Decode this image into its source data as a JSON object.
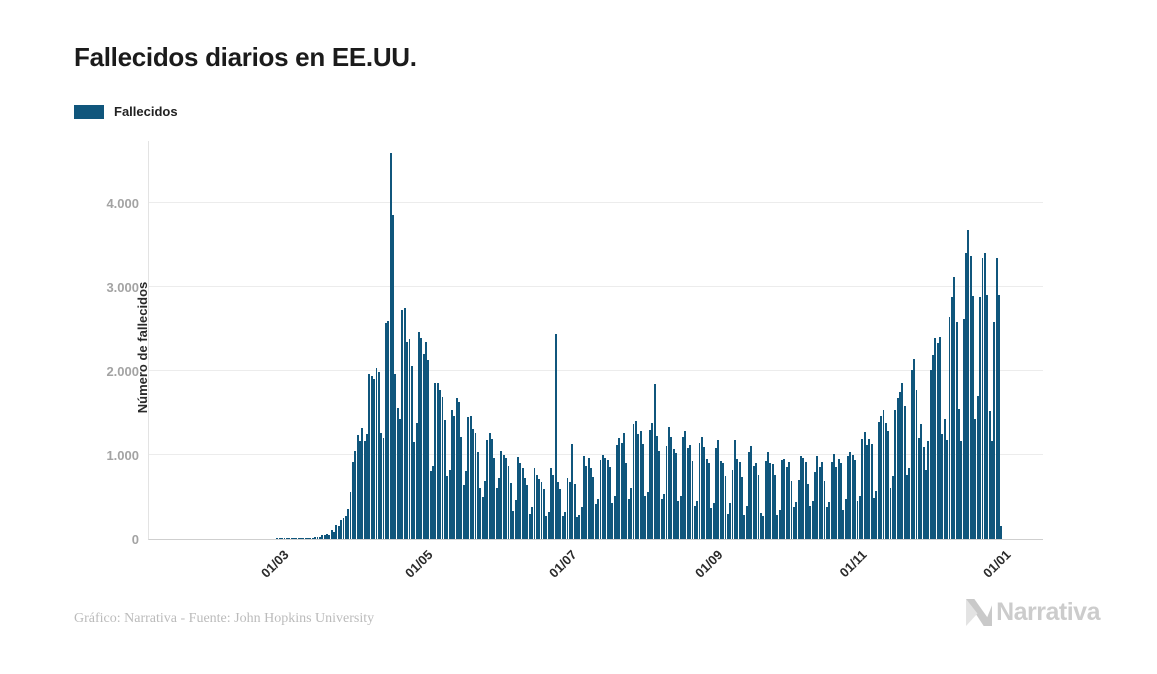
{
  "title": "Fallecidos diarios en EE.UU.",
  "legend": {
    "label": "Fallecidos",
    "color": "#10567C"
  },
  "y_axis": {
    "title": "Número de fallecidos",
    "ticks": [
      {
        "label": "0",
        "value": 0
      },
      {
        "label": "1.000",
        "value": 1000
      },
      {
        "label": "2.000",
        "value": 2000
      },
      {
        "label": "3.000",
        "value": 3000
      },
      {
        "label": "4.000",
        "value": 4000
      }
    ]
  },
  "x_axis": {
    "ticks": [
      {
        "label": "01/03",
        "day": 39
      },
      {
        "label": "01/05",
        "day": 100
      },
      {
        "label": "01/07",
        "day": 161
      },
      {
        "label": "01/09",
        "day": 223
      },
      {
        "label": "01/11",
        "day": 284
      },
      {
        "label": "01/01",
        "day": 345
      }
    ]
  },
  "footer": {
    "source": "Gráfico: Narrativa - Fuente: John Hopkins University",
    "brand": "Narrativa"
  },
  "chart_data": {
    "type": "bar",
    "title": "Fallecidos diarios en EE.UU.",
    "series_name": "Fallecidos",
    "ylabel": "Número de fallecidos",
    "ylim": [
      0,
      4738
    ],
    "grid": true,
    "legend_position": "top-left",
    "bar_color": "#10567C",
    "x_unit": "day",
    "values": [
      0,
      0,
      0,
      0,
      0,
      0,
      0,
      0,
      0,
      0,
      0,
      0,
      0,
      0,
      0,
      0,
      0,
      0,
      0,
      0,
      0,
      0,
      0,
      0,
      0,
      0,
      0,
      0,
      0,
      0,
      0,
      0,
      0,
      0,
      0,
      0,
      0,
      1,
      1,
      1,
      2,
      4,
      3,
      2,
      3,
      4,
      4,
      4,
      5,
      8,
      7,
      12,
      12,
      19,
      23,
      19,
      42,
      50,
      59,
      47,
      113,
      85,
      167,
      155,
      226,
      249,
      273,
      363,
      558,
      912,
      1049,
      1241,
      1164,
      1321,
      1165,
      1255,
      1970,
      1940,
      1906,
      2035,
      1987,
      1265,
      1205,
      2571,
      2593,
      4591,
      3857,
      1961,
      1563,
      1433,
      2731,
      2747,
      2343,
      2379,
      2062,
      1154,
      1384,
      2470,
      2390,
      2201,
      2350,
      2130,
      810,
      865,
      1858,
      1860,
      1770,
      1687,
      1422,
      750,
      820,
      1541,
      1461,
      1680,
      1637,
      1218,
      642,
      808,
      1452,
      1461,
      1306,
      1260,
      1035,
      605,
      505,
      692,
      1176,
      1263,
      1193,
      960,
      605,
      730,
      1052,
      995,
      962,
      870,
      670,
      330,
      470,
      980,
      905,
      850,
      730,
      640,
      300,
      380,
      850,
      760,
      720,
      680,
      590,
      270,
      320,
      850,
      760,
      2437,
      680,
      590,
      270,
      320,
      730,
      680,
      1135,
      650,
      260,
      290,
      380,
      993,
      870,
      960,
      850,
      740,
      420,
      480,
      935,
      995,
      963,
      940,
      860,
      430,
      510,
      1120,
      1205,
      1140,
      1260,
      910,
      480,
      610,
      1365,
      1403,
      1250,
      1290,
      1130,
      515,
      560,
      1302,
      1380,
      1840,
      1230,
      1051,
      480,
      540,
      1103,
      1330,
      1210,
      1070,
      1020,
      450,
      510,
      1220,
      1283,
      1080,
      1120,
      930,
      390,
      450,
      1147,
      1220,
      1100,
      950,
      900,
      370,
      430,
      1083,
      1183,
      930,
      910,
      750,
      300,
      430,
      820,
      1180,
      950,
      920,
      740,
      290,
      390,
      1030,
      1110,
      870,
      900,
      760,
      310,
      270,
      930,
      1030,
      910,
      890,
      760,
      290,
      350,
      940,
      950,
      860,
      920,
      690,
      380,
      440,
      700,
      990,
      970,
      920,
      660,
      390,
      450,
      800,
      990,
      860,
      920,
      690,
      380,
      440,
      915,
      1010,
      856,
      950,
      900,
      340,
      480,
      985,
      1030,
      1000,
      940,
      450,
      510,
      1195,
      1270,
      1120,
      1187,
      1135,
      490,
      570,
      1390,
      1464,
      1540,
      1380,
      1290,
      610,
      750,
      1535,
      1675,
      1750,
      1860,
      1580,
      760,
      845,
      2015,
      2146,
      1770,
      1205,
      1375,
      1095,
      820,
      1172,
      2010,
      2185,
      2395,
      2330,
      2410,
      1245,
      1425,
      1180,
      2645,
      2880,
      3125,
      2585,
      1545,
      1165,
      2625,
      3410,
      3675,
      3365,
      2890,
      1425,
      1705,
      2885,
      3350,
      3405,
      2905,
      1520,
      1165,
      2585,
      3340,
      2905,
      150
    ]
  }
}
